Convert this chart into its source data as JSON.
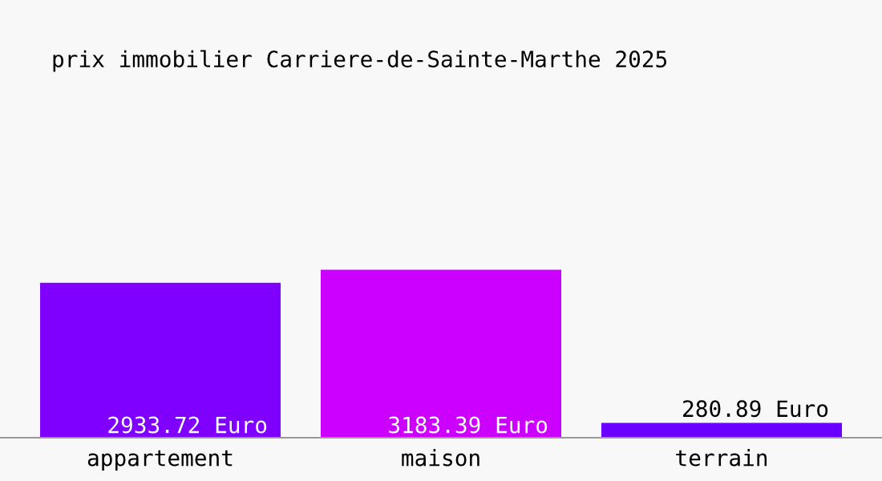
{
  "chart_data": {
    "type": "bar",
    "title": "prix immobilier Carriere-de-Sainte-Marthe 2025",
    "categories": [
      "appartement",
      "maison",
      "terrain"
    ],
    "values": [
      2933.72,
      3183.39,
      280.89
    ],
    "colors": [
      "#8000ff",
      "#cc00ff",
      "#6a00ff"
    ],
    "value_labels": [
      "2933.72 Euro",
      "3183.39 Euro",
      "280.89 Euro"
    ],
    "grid": false,
    "legend": false
  }
}
